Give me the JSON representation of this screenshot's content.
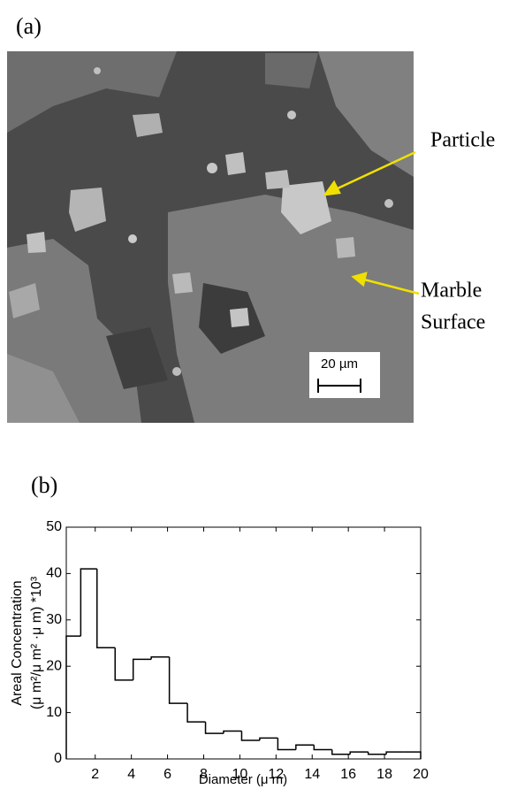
{
  "panel_a": {
    "label": "(a)",
    "particle": "Particle",
    "marble_line1": "Marble",
    "marble_line2": "Surface",
    "scale_bar": "20 µm"
  },
  "chart_data": {
    "type": "histogram",
    "panel_label": "(b)",
    "x_label": "Diameter (μ m)",
    "y_label_line1": "Areal Concentration",
    "y_label_line2": "(μ m²/μ m² ·μ m) *10³",
    "bins": [
      0.4,
      1.2,
      2.1,
      3.1,
      4.1,
      5.1,
      6.1,
      7.1,
      8.1,
      9.1,
      10.1,
      11.1,
      12.1,
      13.1,
      14.1,
      15.1,
      16.1,
      17.1,
      18.1,
      19.1,
      20
    ],
    "values": [
      26.5,
      41,
      24,
      17,
      21.5,
      22,
      12,
      8,
      5.5,
      6,
      4,
      4.5,
      2,
      3,
      2,
      1,
      1.5,
      1,
      1.5,
      1.5
    ],
    "color": "#000000",
    "xlim": [
      0.4,
      20
    ],
    "xticks": [
      2,
      4,
      6,
      8,
      10,
      12,
      14,
      16,
      18,
      20
    ],
    "ylim": [
      0,
      50
    ],
    "yticks": [
      0,
      10,
      20,
      30,
      40,
      50
    ]
  }
}
